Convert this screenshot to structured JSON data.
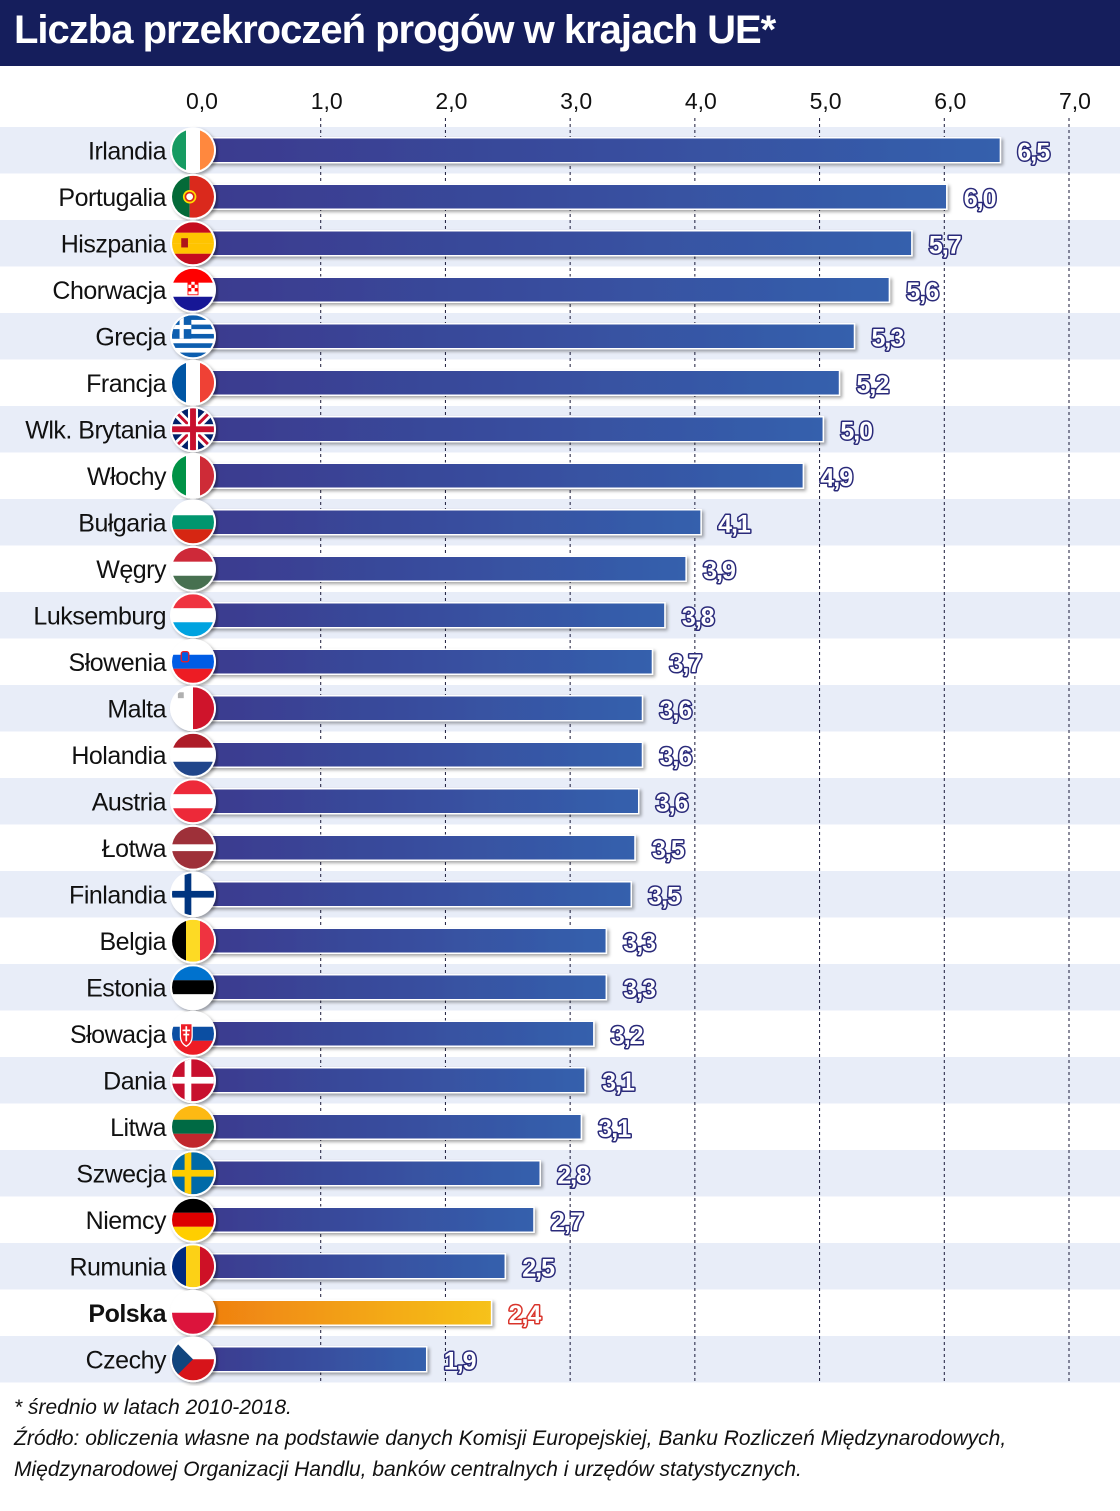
{
  "header": {
    "title": "Liczba przekroczeń progów w krajach UE*"
  },
  "colors": {
    "header_bg": "#151e5c",
    "bar_start": "#3b3a8e",
    "bar_end": "#3560ad",
    "highlight_start": "#ef7d10",
    "highlight_end": "#f6c21a",
    "band": "#e8edf8",
    "value_text": "#ffffff",
    "value_outline": "#2a2a7a",
    "highlight_value_text": "#ffffff",
    "highlight_value_outline": "#d9342b"
  },
  "chart_data": {
    "type": "bar",
    "orientation": "horizontal",
    "xlim": [
      0,
      7
    ],
    "ticks": [
      "0,0",
      "1,0",
      "2,0",
      "3,0",
      "4,0",
      "5,0",
      "6,0",
      "7,0"
    ],
    "grid": "vertical dashed",
    "highlight": "Polska",
    "rows": [
      {
        "label": "Irlandia",
        "value": 6.45,
        "value_label": "6,5",
        "flag": "ireland-flag-icon"
      },
      {
        "label": "Portugalia",
        "value": 6.02,
        "value_label": "6,0",
        "flag": "portugal-flag-icon"
      },
      {
        "label": "Hiszpania",
        "value": 5.74,
        "value_label": "5,7",
        "flag": "spain-flag-icon"
      },
      {
        "label": "Chorwacja",
        "value": 5.56,
        "value_label": "5,6",
        "flag": "croatia-flag-icon"
      },
      {
        "label": "Grecja",
        "value": 5.28,
        "value_label": "5,3",
        "flag": "greece-flag-icon"
      },
      {
        "label": "Francja",
        "value": 5.16,
        "value_label": "5,2",
        "flag": "france-flag-icon"
      },
      {
        "label": "Wlk. Brytania",
        "value": 5.03,
        "value_label": "5,0",
        "flag": "uk-flag-icon"
      },
      {
        "label": "Włochy",
        "value": 4.87,
        "value_label": "4,9",
        "flag": "italy-flag-icon"
      },
      {
        "label": "Bułgaria",
        "value": 4.05,
        "value_label": "4,1",
        "flag": "bulgaria-flag-icon"
      },
      {
        "label": "Węgry",
        "value": 3.93,
        "value_label": "3,9",
        "flag": "hungary-flag-icon"
      },
      {
        "label": "Luksemburg",
        "value": 3.76,
        "value_label": "3,8",
        "flag": "luxembourg-flag-icon"
      },
      {
        "label": "Słowenia",
        "value": 3.66,
        "value_label": "3,7",
        "flag": "slovenia-flag-icon"
      },
      {
        "label": "Malta",
        "value": 3.58,
        "value_label": "3,6",
        "flag": "malta-flag-icon"
      },
      {
        "label": "Holandia",
        "value": 3.58,
        "value_label": "3,6",
        "flag": "netherlands-flag-icon"
      },
      {
        "label": "Austria",
        "value": 3.55,
        "value_label": "3,6",
        "flag": "austria-flag-icon"
      },
      {
        "label": "Łotwa",
        "value": 3.52,
        "value_label": "3,5",
        "flag": "latvia-flag-icon"
      },
      {
        "label": "Finlandia",
        "value": 3.49,
        "value_label": "3,5",
        "flag": "finland-flag-icon"
      },
      {
        "label": "Belgia",
        "value": 3.29,
        "value_label": "3,3",
        "flag": "belgium-flag-icon"
      },
      {
        "label": "Estonia",
        "value": 3.29,
        "value_label": "3,3",
        "flag": "estonia-flag-icon"
      },
      {
        "label": "Słowacja",
        "value": 3.19,
        "value_label": "3,2",
        "flag": "slovakia-flag-icon"
      },
      {
        "label": "Dania",
        "value": 3.12,
        "value_label": "3,1",
        "flag": "denmark-flag-icon"
      },
      {
        "label": "Litwa",
        "value": 3.09,
        "value_label": "3,1",
        "flag": "lithuania-flag-icon"
      },
      {
        "label": "Szwecja",
        "value": 2.76,
        "value_label": "2,8",
        "flag": "sweden-flag-icon"
      },
      {
        "label": "Niemcy",
        "value": 2.71,
        "value_label": "2,7",
        "flag": "germany-flag-icon"
      },
      {
        "label": "Rumunia",
        "value": 2.48,
        "value_label": "2,5",
        "flag": "romania-flag-icon"
      },
      {
        "label": "Polska",
        "value": 2.37,
        "value_label": "2,4",
        "flag": "poland-flag-icon"
      },
      {
        "label": "Czechy",
        "value": 1.85,
        "value_label": "1,9",
        "flag": "czechia-flag-icon"
      }
    ]
  },
  "notes": {
    "footnote": "* średnio w latach 2010-2018.",
    "source_line1": "Źródło: obliczenia własne na podstawie danych Komisji Europejskiej, Banku Rozliczeń Międzynarodowych,",
    "source_line2": "Międzynarodowej Organizacji Handlu, banków centralnych i urzędów statystycznych."
  }
}
